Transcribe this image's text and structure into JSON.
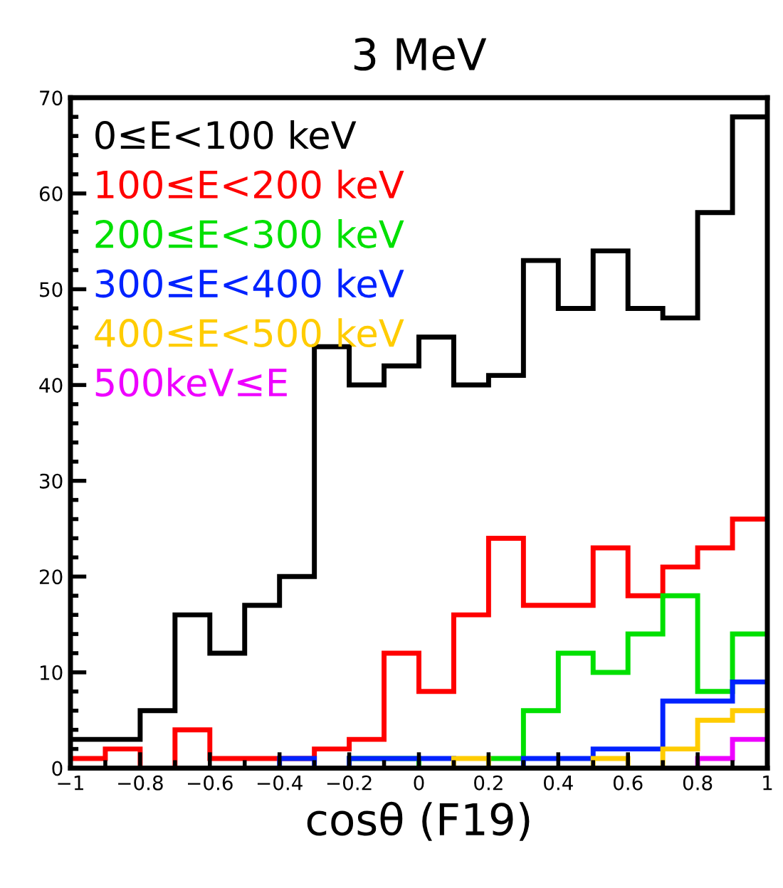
{
  "chart_data": {
    "type": "histogram",
    "title": "3 MeV",
    "xlabel": "cosθ (F19)",
    "bins": [
      -1,
      -0.9,
      -0.8,
      -0.7,
      -0.6,
      -0.5,
      -0.4,
      -0.3,
      -0.2,
      -0.1,
      0,
      0.1,
      0.2,
      0.3,
      0.4,
      0.5,
      0.6,
      0.7,
      0.8,
      0.9,
      1
    ],
    "series": [
      {
        "name": "0≤E<100 keV",
        "color": "#000000",
        "values": [
          3,
          3,
          6,
          16,
          12,
          17,
          20,
          44,
          40,
          42,
          45,
          40,
          41,
          53,
          48,
          54,
          48,
          47,
          58,
          68
        ]
      },
      {
        "name": "100≤E<200 keV",
        "color": "#ff0000",
        "values": [
          1,
          2,
          0,
          4,
          1,
          1,
          1,
          2,
          3,
          12,
          8,
          16,
          24,
          17,
          17,
          23,
          18,
          21,
          23,
          26
        ]
      },
      {
        "name": "200≤E<300 keV",
        "color": "#00e000",
        "values": [
          0,
          0,
          0,
          0,
          0,
          0,
          0,
          0,
          1,
          1,
          0,
          0,
          1,
          6,
          12,
          10,
          14,
          18,
          8,
          14
        ]
      },
      {
        "name": "300≤E<400 keV",
        "color": "#0022ff",
        "values": [
          0,
          0,
          0,
          0,
          0,
          0,
          1,
          0,
          1,
          1,
          1,
          0,
          0,
          1,
          1,
          2,
          2,
          7,
          7,
          9
        ]
      },
      {
        "name": "400≤E<500 keV",
        "color": "#ffcc00",
        "values": [
          0,
          0,
          0,
          0,
          0,
          0,
          0,
          0,
          0,
          0,
          0,
          1,
          0,
          0,
          0,
          1,
          0,
          2,
          5,
          6
        ]
      },
      {
        "name": "500keV≤E",
        "color": "#ee00ff",
        "values": [
          0,
          0,
          0,
          0,
          0,
          0,
          0,
          0,
          0,
          0,
          0,
          0,
          0,
          0,
          0,
          0,
          0,
          0,
          1,
          3
        ]
      }
    ],
    "xlim": [
      -1,
      1
    ],
    "ylim": [
      0,
      70
    ],
    "xticks": [
      {
        "value": -1,
        "label": "−1"
      },
      {
        "value": -0.8,
        "label": "−0.8"
      },
      {
        "value": -0.6,
        "label": "−0.6"
      },
      {
        "value": -0.4,
        "label": "−0.4"
      },
      {
        "value": -0.2,
        "label": "−0.2"
      },
      0,
      0.2,
      0.4,
      0.6,
      0.8,
      1
    ],
    "yticks": [
      0,
      10,
      20,
      30,
      40,
      50,
      60,
      70
    ],
    "legend": "top left",
    "grid": false
  }
}
